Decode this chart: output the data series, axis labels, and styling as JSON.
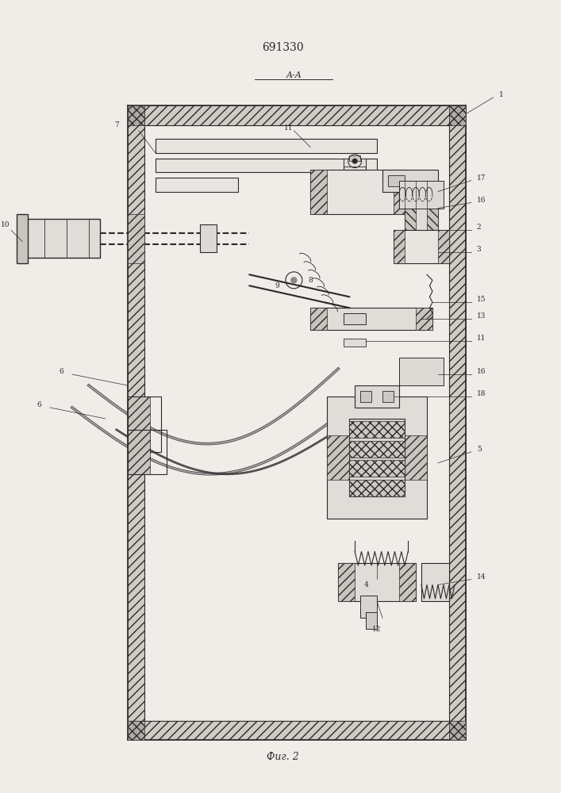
{
  "title": "691330",
  "section_label": "A-A",
  "fig_label": "Фиг. 2",
  "bg_color": "#f0ede8",
  "line_color": "#2a2a2a",
  "hatch_color": "#2a2a2a",
  "fig_width": 7.07,
  "fig_height": 10.0,
  "dpi": 100
}
